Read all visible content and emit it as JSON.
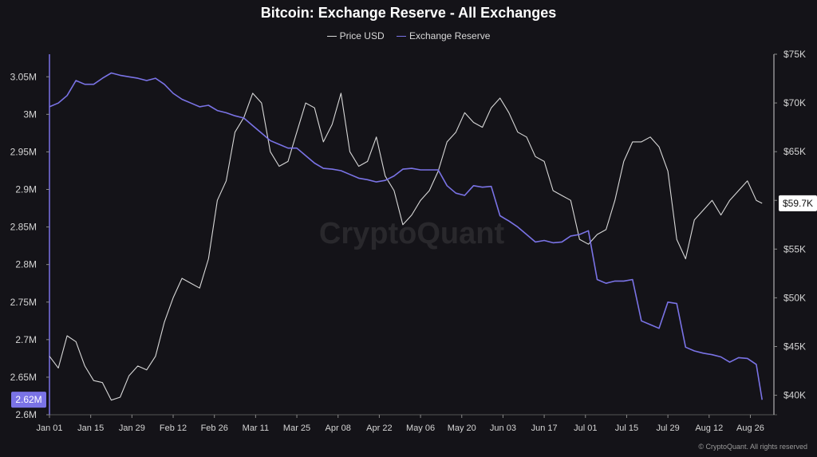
{
  "chart_data": {
    "type": "line",
    "title": "Bitcoin: Exchange Reserve - All Exchanges",
    "watermark": "CryptoQuant",
    "credit": "© CryptoQuant. All rights reserved",
    "x_ticks": [
      "Jan 01",
      "Jan 15",
      "Jan 29",
      "Feb 12",
      "Feb 26",
      "Mar 11",
      "Mar 25",
      "Apr 08",
      "Apr 22",
      "May 06",
      "May 20",
      "Jun 03",
      "Jun 17",
      "Jul 01",
      "Jul 15",
      "Jul 29",
      "Aug 12",
      "Aug 26"
    ],
    "y_left": {
      "ticks": [
        "2.6M",
        "2.65M",
        "2.7M",
        "2.75M",
        "2.8M",
        "2.85M",
        "2.9M",
        "2.95M",
        "3M",
        "3.05M"
      ],
      "ylim": [
        2600000,
        3080000
      ],
      "current_label": "2.62M"
    },
    "y_right": {
      "ticks": [
        "$40K",
        "$45K",
        "$50K",
        "$55K",
        "$60K",
        "$65K",
        "$70K",
        "$75K"
      ],
      "ylim": [
        38000,
        75000
      ],
      "current_label": "$59.7K"
    },
    "grid": false,
    "legend_position": "top-center",
    "series": [
      {
        "name": "Price USD",
        "axis": "right",
        "color": "#d8d8d8",
        "x": [
          "Jan 01",
          "Jan 04",
          "Jan 07",
          "Jan 10",
          "Jan 13",
          "Jan 16",
          "Jan 19",
          "Jan 22",
          "Jan 25",
          "Jan 28",
          "Jan 31",
          "Feb 03",
          "Feb 06",
          "Feb 09",
          "Feb 12",
          "Feb 15",
          "Feb 18",
          "Feb 21",
          "Feb 24",
          "Feb 27",
          "Mar 01",
          "Mar 04",
          "Mar 07",
          "Mar 10",
          "Mar 13",
          "Mar 16",
          "Mar 19",
          "Mar 22",
          "Mar 25",
          "Mar 28",
          "Mar 31",
          "Apr 03",
          "Apr 06",
          "Apr 09",
          "Apr 12",
          "Apr 15",
          "Apr 18",
          "Apr 21",
          "Apr 24",
          "Apr 27",
          "Apr 30",
          "May 03",
          "May 06",
          "May 09",
          "May 12",
          "May 15",
          "May 18",
          "May 21",
          "May 24",
          "May 27",
          "May 30",
          "Jun 02",
          "Jun 05",
          "Jun 08",
          "Jun 11",
          "Jun 14",
          "Jun 17",
          "Jun 20",
          "Jun 23",
          "Jun 26",
          "Jun 29",
          "Jul 02",
          "Jul 05",
          "Jul 08",
          "Jul 11",
          "Jul 14",
          "Jul 17",
          "Jul 20",
          "Jul 23",
          "Jul 26",
          "Jul 29",
          "Aug 01",
          "Aug 04",
          "Aug 07",
          "Aug 10",
          "Aug 13",
          "Aug 16",
          "Aug 19",
          "Aug 22",
          "Aug 25",
          "Aug 28",
          "Aug 30"
        ],
        "values": [
          44000,
          42800,
          46100,
          45500,
          43000,
          41500,
          41300,
          39500,
          39800,
          42000,
          43000,
          42600,
          44000,
          47500,
          50000,
          52000,
          51500,
          51000,
          54000,
          60000,
          62000,
          67000,
          68500,
          71000,
          70000,
          65000,
          63500,
          64000,
          67000,
          70000,
          69500,
          66000,
          67800,
          71000,
          65000,
          63500,
          64000,
          66500,
          62500,
          61000,
          57500,
          58500,
          60000,
          61000,
          63000,
          66000,
          67000,
          69000,
          68000,
          67500,
          69500,
          70500,
          69000,
          67000,
          66500,
          64500,
          64000,
          61000,
          60500,
          60000,
          56000,
          55500,
          56500,
          57000,
          60000,
          64000,
          66000,
          66000,
          66500,
          65500,
          63000,
          56000,
          54000,
          58000,
          59000,
          60000,
          58500,
          60000,
          61000,
          62000,
          60000,
          59700
        ]
      },
      {
        "name": "Exchange Reserve",
        "axis": "left",
        "color": "#7a73e6",
        "x": [
          "Jan 01",
          "Jan 04",
          "Jan 07",
          "Jan 10",
          "Jan 13",
          "Jan 16",
          "Jan 19",
          "Jan 22",
          "Jan 25",
          "Jan 28",
          "Jan 31",
          "Feb 03",
          "Feb 06",
          "Feb 09",
          "Feb 12",
          "Feb 15",
          "Feb 18",
          "Feb 21",
          "Feb 24",
          "Feb 27",
          "Mar 01",
          "Mar 04",
          "Mar 07",
          "Mar 10",
          "Mar 13",
          "Mar 16",
          "Mar 19",
          "Mar 22",
          "Mar 25",
          "Mar 28",
          "Mar 31",
          "Apr 03",
          "Apr 06",
          "Apr 09",
          "Apr 12",
          "Apr 15",
          "Apr 18",
          "Apr 21",
          "Apr 24",
          "Apr 27",
          "Apr 30",
          "May 03",
          "May 06",
          "May 09",
          "May 12",
          "May 15",
          "May 18",
          "May 21",
          "May 24",
          "May 27",
          "May 30",
          "Jun 02",
          "Jun 05",
          "Jun 08",
          "Jun 11",
          "Jun 14",
          "Jun 17",
          "Jun 20",
          "Jun 23",
          "Jun 26",
          "Jun 29",
          "Jul 02",
          "Jul 05",
          "Jul 08",
          "Jul 11",
          "Jul 14",
          "Jul 17",
          "Jul 20",
          "Jul 23",
          "Jul 26",
          "Jul 29",
          "Aug 01",
          "Aug 04",
          "Aug 07",
          "Aug 10",
          "Aug 13",
          "Aug 16",
          "Aug 19",
          "Aug 22",
          "Aug 25",
          "Aug 28",
          "Aug 30"
        ],
        "values": [
          3010000,
          3015000,
          3025000,
          3045000,
          3040000,
          3040000,
          3048000,
          3055000,
          3052000,
          3050000,
          3048000,
          3045000,
          3048000,
          3040000,
          3028000,
          3020000,
          3015000,
          3010000,
          3012000,
          3005000,
          3002000,
          2998000,
          2995000,
          2985000,
          2975000,
          2965000,
          2960000,
          2955000,
          2955000,
          2945000,
          2935000,
          2928000,
          2927000,
          2925000,
          2920000,
          2915000,
          2913000,
          2910000,
          2912000,
          2918000,
          2927000,
          2928000,
          2926000,
          2926000,
          2926000,
          2905000,
          2895000,
          2892000,
          2905000,
          2903000,
          2904000,
          2865000,
          2858000,
          2850000,
          2840000,
          2830000,
          2832000,
          2829000,
          2830000,
          2838000,
          2840000,
          2845000,
          2780000,
          2775000,
          2778000,
          2778000,
          2780000,
          2725000,
          2720000,
          2715000,
          2750000,
          2748000,
          2690000,
          2685000,
          2682000,
          2680000,
          2677000,
          2670000,
          2676000,
          2675000,
          2667000,
          2620000
        ]
      }
    ]
  }
}
